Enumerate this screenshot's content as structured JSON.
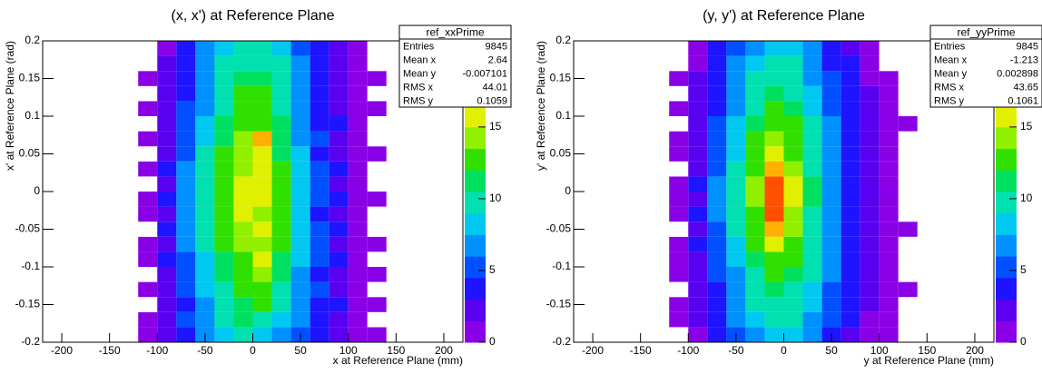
{
  "chart_data": [
    {
      "type": "heatmap",
      "title": "(x, x') at Reference Plane",
      "x_label": "x at Reference Plane (mm)",
      "y_label": "x' at Reference Plane (rad)",
      "xlim": [
        -220,
        220
      ],
      "xticks": [
        -200,
        -150,
        -100,
        -50,
        0,
        50,
        100,
        150,
        200
      ],
      "ylim": [
        -0.2,
        0.2
      ],
      "yticks": [
        -0.2,
        -0.15,
        -0.1,
        -0.05,
        0,
        0.05,
        0.1,
        0.15,
        0.2
      ],
      "zlim": [
        0,
        21
      ],
      "zticks": [
        0,
        5,
        10,
        15,
        20
      ],
      "palette": [
        "#8a00e6",
        "#5a00f0",
        "#1e14ff",
        "#0050ff",
        "#0090ff",
        "#00c8f0",
        "#00e0b0",
        "#00e060",
        "#30e000",
        "#90f000",
        "#e0f000",
        "#ffb000",
        "#ff5000",
        "#ff0000"
      ],
      "xbins": [
        -120,
        -100,
        -80,
        -60,
        -40,
        -20,
        0,
        20,
        40,
        60,
        80,
        100,
        120,
        140,
        160
      ],
      "ybins": [
        -0.2,
        -0.18,
        -0.16,
        -0.14,
        -0.12,
        -0.1,
        -0.08,
        -0.06,
        -0.04,
        -0.02,
        0,
        0.02,
        0.04,
        0.06,
        0.08,
        0.1,
        0.12,
        0.14,
        0.16,
        0.18,
        0.2
      ],
      "z": [
        [
          1,
          2,
          4,
          6,
          8,
          9,
          8,
          7,
          5,
          4,
          2,
          1,
          1,
          0
        ],
        [
          1,
          2,
          5,
          7,
          9,
          11,
          10,
          8,
          6,
          4,
          2,
          1,
          0,
          0
        ],
        [
          0,
          2,
          4,
          7,
          10,
          11,
          12,
          9,
          6,
          4,
          3,
          1,
          1,
          0
        ],
        [
          1,
          2,
          5,
          8,
          10,
          12,
          12,
          10,
          7,
          5,
          2,
          1,
          0,
          0
        ],
        [
          0,
          2,
          5,
          8,
          11,
          13,
          14,
          11,
          7,
          4,
          2,
          1,
          1,
          0
        ],
        [
          1,
          3,
          5,
          8,
          11,
          13,
          15,
          11,
          8,
          5,
          3,
          1,
          0,
          0
        ],
        [
          1,
          2,
          6,
          9,
          12,
          14,
          14,
          12,
          8,
          5,
          2,
          1,
          1,
          0
        ],
        [
          0,
          3,
          6,
          9,
          12,
          14,
          15,
          12,
          8,
          5,
          3,
          1,
          0,
          0
        ],
        [
          1,
          2,
          6,
          9,
          12,
          15,
          14,
          12,
          8,
          4,
          2,
          1,
          0,
          0
        ],
        [
          1,
          3,
          6,
          10,
          13,
          15,
          16,
          12,
          8,
          5,
          3,
          1,
          1,
          0
        ],
        [
          0,
          2,
          6,
          9,
          13,
          15,
          15,
          12,
          8,
          5,
          2,
          1,
          0,
          0
        ],
        [
          1,
          3,
          6,
          9,
          12,
          14,
          16,
          12,
          8,
          5,
          3,
          1,
          0,
          0
        ],
        [
          0,
          2,
          5,
          9,
          12,
          14,
          15,
          11,
          8,
          4,
          2,
          1,
          1,
          0
        ],
        [
          1,
          2,
          5,
          8,
          11,
          14,
          17,
          11,
          7,
          5,
          2,
          1,
          0,
          0
        ],
        [
          0,
          2,
          5,
          8,
          11,
          13,
          13,
          11,
          7,
          4,
          3,
          1,
          0,
          0
        ],
        [
          1,
          2,
          5,
          7,
          10,
          12,
          13,
          10,
          7,
          4,
          2,
          1,
          1,
          0
        ],
        [
          0,
          2,
          4,
          7,
          10,
          12,
          12,
          10,
          6,
          4,
          2,
          1,
          0,
          0
        ],
        [
          1,
          2,
          4,
          7,
          9,
          11,
          11,
          9,
          6,
          4,
          2,
          1,
          1,
          0
        ],
        [
          0,
          2,
          4,
          6,
          9,
          10,
          10,
          9,
          6,
          3,
          2,
          1,
          0,
          0
        ],
        [
          0,
          1,
          3,
          6,
          8,
          9,
          9,
          8,
          5,
          3,
          2,
          1,
          0,
          0
        ]
      ],
      "stats": {
        "name": "ref_xxPrime",
        "rows": [
          [
            "Entries",
            9845
          ],
          [
            "Mean x",
            2.64
          ],
          [
            "Mean y",
            -0.007101
          ],
          [
            "RMS x",
            44.01
          ],
          [
            "RMS y",
            0.1059
          ]
        ]
      }
    },
    {
      "type": "heatmap",
      "title": "(y, y') at Reference Plane",
      "x_label": "y at Reference Plane (mm)",
      "y_label": "y' at Reference Plane (rad)",
      "xlim": [
        -220,
        220
      ],
      "xticks": [
        -200,
        -150,
        -100,
        -50,
        0,
        50,
        100,
        150,
        200
      ],
      "ylim": [
        -0.2,
        0.2
      ],
      "yticks": [
        -0.2,
        -0.15,
        -0.1,
        -0.05,
        0,
        0.05,
        0.1,
        0.15,
        0.2
      ],
      "zlim": [
        0,
        21
      ],
      "zticks": [
        0,
        5,
        10,
        15,
        20
      ],
      "palette": [
        "#8a00e6",
        "#5a00f0",
        "#1e14ff",
        "#0050ff",
        "#0090ff",
        "#00c8f0",
        "#00e0b0",
        "#00e060",
        "#30e000",
        "#90f000",
        "#e0f000",
        "#ffb000",
        "#ff5000",
        "#ff0000"
      ],
      "xbins": [
        -120,
        -100,
        -80,
        -60,
        -40,
        -20,
        0,
        20,
        40,
        60,
        80,
        100,
        120,
        140,
        160
      ],
      "ybins": [
        -0.2,
        -0.18,
        -0.16,
        -0.14,
        -0.12,
        -0.1,
        -0.08,
        -0.06,
        -0.04,
        -0.02,
        0,
        0.02,
        0.04,
        0.06,
        0.08,
        0.1,
        0.12,
        0.14,
        0.16,
        0.18,
        0.2
      ],
      "z": [
        [
          0,
          1,
          3,
          5,
          7,
          8,
          8,
          6,
          4,
          2,
          1,
          1,
          0,
          0
        ],
        [
          1,
          2,
          4,
          6,
          8,
          9,
          9,
          7,
          5,
          3,
          1,
          1,
          0,
          0
        ],
        [
          1,
          2,
          4,
          6,
          9,
          10,
          10,
          8,
          5,
          3,
          2,
          1,
          0,
          0
        ],
        [
          0,
          2,
          4,
          7,
          10,
          11,
          10,
          8,
          5,
          3,
          2,
          1,
          1,
          0
        ],
        [
          1,
          2,
          5,
          7,
          10,
          12,
          11,
          9,
          6,
          3,
          2,
          1,
          0,
          0
        ],
        [
          1,
          2,
          5,
          8,
          11,
          13,
          12,
          9,
          6,
          4,
          2,
          1,
          0,
          0
        ],
        [
          1,
          3,
          5,
          8,
          12,
          15,
          13,
          10,
          6,
          4,
          2,
          1,
          0,
          0
        ],
        [
          0,
          2,
          5,
          9,
          13,
          17,
          14,
          10,
          7,
          4,
          2,
          1,
          1,
          0
        ],
        [
          1,
          3,
          6,
          9,
          13,
          18,
          14,
          10,
          7,
          4,
          2,
          1,
          0,
          0
        ],
        [
          1,
          2,
          6,
          9,
          14,
          19,
          15,
          11,
          7,
          4,
          2,
          1,
          0,
          0
        ],
        [
          1,
          3,
          6,
          9,
          14,
          19,
          15,
          11,
          7,
          4,
          2,
          1,
          0,
          0
        ],
        [
          0,
          2,
          5,
          9,
          13,
          17,
          14,
          10,
          6,
          4,
          2,
          1,
          0,
          0
        ],
        [
          1,
          2,
          5,
          8,
          12,
          16,
          13,
          10,
          6,
          4,
          2,
          1,
          0,
          0
        ],
        [
          1,
          2,
          5,
          8,
          12,
          14,
          13,
          9,
          6,
          3,
          2,
          1,
          0,
          0
        ],
        [
          0,
          2,
          5,
          8,
          11,
          13,
          12,
          9,
          6,
          3,
          2,
          1,
          1,
          0
        ],
        [
          1,
          2,
          4,
          7,
          10,
          12,
          11,
          8,
          5,
          3,
          2,
          1,
          0,
          0
        ],
        [
          0,
          2,
          4,
          7,
          10,
          11,
          10,
          8,
          5,
          3,
          2,
          1,
          0,
          0
        ],
        [
          1,
          2,
          4,
          6,
          9,
          10,
          10,
          7,
          5,
          3,
          1,
          1,
          0,
          0
        ],
        [
          0,
          1,
          3,
          6,
          8,
          9,
          9,
          7,
          4,
          3,
          1,
          0,
          0,
          0
        ],
        [
          0,
          1,
          3,
          5,
          7,
          8,
          8,
          6,
          4,
          2,
          1,
          0,
          0,
          0
        ]
      ],
      "stats": {
        "name": "ref_yyPrime",
        "rows": [
          [
            "Entries",
            9845
          ],
          [
            "Mean x",
            -1.213
          ],
          [
            "Mean y",
            0.002898
          ],
          [
            "RMS x",
            43.65
          ],
          [
            "RMS y",
            0.1061
          ]
        ]
      }
    }
  ]
}
